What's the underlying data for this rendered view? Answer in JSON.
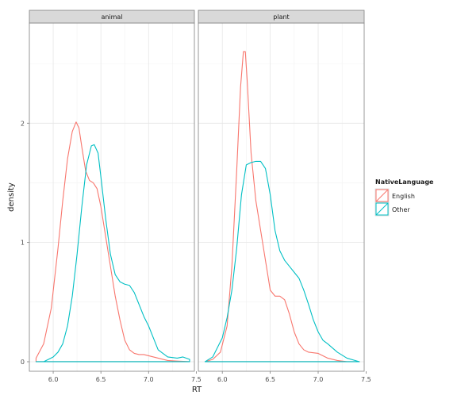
{
  "chart_data": {
    "type": "line",
    "title": "",
    "xlabel": "RT",
    "ylabel": "density",
    "xlim": [
      5.75,
      7.48
    ],
    "ylim": [
      -0.08,
      2.84
    ],
    "x_ticks": [
      6.0,
      6.5,
      7.0,
      7.5
    ],
    "x_tick_labels": [
      "6.0",
      "6.5",
      "7.0",
      "7.5"
    ],
    "y_ticks": [
      0,
      1,
      2
    ],
    "y_tick_labels": [
      "0",
      "1",
      "2"
    ],
    "grid": true,
    "legend": {
      "title": "NativeLanguage",
      "placement": "right",
      "entries": [
        "English",
        "Other"
      ]
    },
    "colors": {
      "English": "#F8766D",
      "Other": "#00BFC4"
    },
    "facets": [
      {
        "name": "animal",
        "series": [
          {
            "name": "English",
            "x": [
              5.82,
              5.9,
              5.98,
              6.05,
              6.1,
              6.15,
              6.2,
              6.24,
              6.27,
              6.3,
              6.34,
              6.38,
              6.42,
              6.46,
              6.5,
              6.55,
              6.6,
              6.65,
              6.7,
              6.75,
              6.8,
              6.85,
              6.9,
              6.95,
              7.0,
              7.05,
              7.1,
              7.2,
              7.3,
              7.43
            ],
            "y": [
              0.03,
              0.15,
              0.45,
              0.95,
              1.35,
              1.7,
              1.93,
              2.01,
              1.96,
              1.8,
              1.6,
              1.52,
              1.5,
              1.45,
              1.3,
              1.05,
              0.8,
              0.55,
              0.35,
              0.18,
              0.1,
              0.07,
              0.06,
              0.06,
              0.05,
              0.04,
              0.03,
              0.01,
              0.005,
              0.0
            ]
          },
          {
            "name": "Other",
            "x": [
              5.82,
              5.9,
              6.0,
              6.05,
              6.1,
              6.15,
              6.2,
              6.25,
              6.3,
              6.35,
              6.4,
              6.43,
              6.47,
              6.5,
              6.55,
              6.6,
              6.65,
              6.7,
              6.75,
              6.8,
              6.85,
              6.9,
              6.95,
              7.0,
              7.05,
              7.1,
              7.2,
              7.3,
              7.36,
              7.43
            ],
            "y": [
              0.0,
              0.0,
              0.04,
              0.08,
              0.15,
              0.3,
              0.55,
              0.9,
              1.3,
              1.65,
              1.81,
              1.82,
              1.75,
              1.55,
              1.2,
              0.9,
              0.73,
              0.67,
              0.65,
              0.64,
              0.58,
              0.48,
              0.38,
              0.3,
              0.2,
              0.1,
              0.04,
              0.03,
              0.04,
              0.02
            ]
          }
        ]
      },
      {
        "name": "plant",
        "series": [
          {
            "name": "English",
            "x": [
              5.82,
              5.9,
              5.98,
              6.05,
              6.1,
              6.15,
              6.19,
              6.22,
              6.24,
              6.26,
              6.3,
              6.35,
              6.4,
              6.45,
              6.5,
              6.55,
              6.6,
              6.65,
              6.7,
              6.75,
              6.8,
              6.85,
              6.9,
              7.0,
              7.1,
              7.2,
              7.3,
              7.43
            ],
            "y": [
              0.0,
              0.02,
              0.08,
              0.3,
              0.8,
              1.6,
              2.3,
              2.6,
              2.6,
              2.35,
              1.75,
              1.35,
              1.1,
              0.85,
              0.6,
              0.55,
              0.55,
              0.52,
              0.4,
              0.25,
              0.15,
              0.1,
              0.08,
              0.07,
              0.03,
              0.01,
              0.0,
              0.0
            ]
          },
          {
            "name": "Other",
            "x": [
              5.82,
              5.9,
              6.0,
              6.05,
              6.1,
              6.15,
              6.2,
              6.25,
              6.3,
              6.35,
              6.4,
              6.45,
              6.5,
              6.55,
              6.6,
              6.65,
              6.7,
              6.75,
              6.8,
              6.85,
              6.9,
              6.95,
              7.0,
              7.05,
              7.1,
              7.2,
              7.3,
              7.43
            ],
            "y": [
              0.0,
              0.04,
              0.2,
              0.37,
              0.6,
              0.95,
              1.4,
              1.65,
              1.67,
              1.68,
              1.68,
              1.62,
              1.4,
              1.1,
              0.93,
              0.85,
              0.8,
              0.75,
              0.7,
              0.6,
              0.48,
              0.35,
              0.25,
              0.18,
              0.15,
              0.08,
              0.03,
              0.0
            ]
          }
        ]
      }
    ]
  }
}
